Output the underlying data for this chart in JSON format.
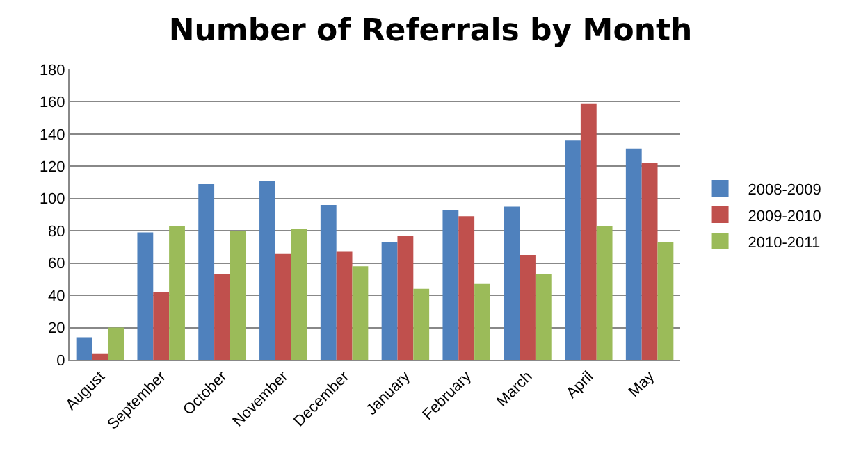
{
  "chart_data": {
    "type": "bar",
    "title": "Number of Referrals by Month",
    "categories": [
      "August",
      "September",
      "October",
      "November",
      "December",
      "January",
      "February",
      "March",
      "April",
      "May"
    ],
    "series": [
      {
        "name": "2008-2009",
        "color": "#4f81bd",
        "values": [
          14,
          79,
          109,
          111,
          96,
          73,
          93,
          95,
          136,
          131
        ]
      },
      {
        "name": "2009-2010",
        "color": "#c0504d",
        "values": [
          4,
          42,
          53,
          66,
          67,
          77,
          89,
          65,
          159,
          122
        ]
      },
      {
        "name": "2010-2011",
        "color": "#9bbb59",
        "values": [
          20,
          83,
          80,
          81,
          58,
          44,
          47,
          53,
          83,
          73
        ]
      }
    ],
    "ylim": [
      0,
      180
    ],
    "yticks": [
      0,
      20,
      40,
      60,
      80,
      100,
      120,
      140,
      160,
      180
    ],
    "grid": "y",
    "legend": "right"
  }
}
